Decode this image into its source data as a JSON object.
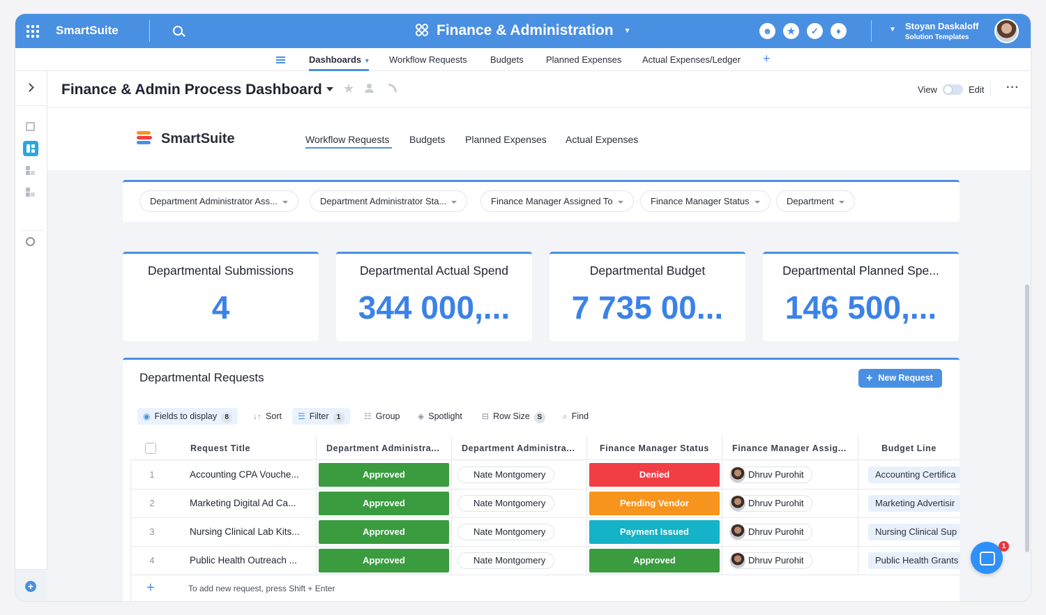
{
  "app": {
    "brand": "SmartSuite",
    "workspace_title": "Finance & Administration",
    "user_name": "Stoyan Daskaloff",
    "user_subtitle": "Solution Templates"
  },
  "subnav": {
    "items": [
      "Dashboards",
      "Workflow Requests",
      "Budgets",
      "Planned Expenses",
      "Actual Expenses/Ledger"
    ],
    "add": "+"
  },
  "page": {
    "title": "Finance & Admin Process Dashboard",
    "view_label": "View",
    "edit_label": "Edit",
    "more": "···"
  },
  "banner": {
    "logo_text": "SmartSuite",
    "nav": [
      "Workflow Requests",
      "Budgets",
      "Planned Expenses",
      "Actual Expenses"
    ]
  },
  "filters": [
    "Department Administrator Ass...",
    "Department Administrator Sta...",
    "Finance Manager Assigned To",
    "Finance Manager Status",
    "Department"
  ],
  "metrics": [
    {
      "title": "Departmental Submissions",
      "value": "4"
    },
    {
      "title": "Departmental Actual Spend",
      "value": "344 000,..."
    },
    {
      "title": "Departmental Budget",
      "value": "7 735 00..."
    },
    {
      "title": "Departmental Planned Spe...",
      "value": "146 500,..."
    }
  ],
  "requests": {
    "title": "Departmental Requests",
    "new_button": "New Request",
    "toolbar": {
      "fields": "Fields to display",
      "fields_count": "8",
      "sort": "Sort",
      "filter": "Filter",
      "filter_count": "1",
      "group": "Group",
      "spotlight": "Spotlight",
      "row_size": "Row Size",
      "row_size_value": "S",
      "find": "Find"
    },
    "columns": [
      "Request Title",
      "Department Administra...",
      "Department Administra...",
      "Finance Manager Status",
      "Finance Manager Assig...",
      "Budget Line"
    ],
    "rows": [
      {
        "n": "1",
        "title": "Accounting CPA Vouche...",
        "admin_status": "Approved",
        "admin": "Nate Montgomery",
        "fm_status": "Denied",
        "fm": "Dhruv Purohit",
        "budget": "Accounting Certifica"
      },
      {
        "n": "2",
        "title": "Marketing Digital Ad Ca...",
        "admin_status": "Approved",
        "admin": "Nate Montgomery",
        "fm_status": "Pending Vendor",
        "fm": "Dhruv Purohit",
        "budget": "Marketing Advertisir"
      },
      {
        "n": "3",
        "title": "Nursing Clinical Lab Kits...",
        "admin_status": "Approved",
        "admin": "Nate Montgomery",
        "fm_status": "Payment Issued",
        "fm": "Dhruv Purohit",
        "budget": "Nursing Clinical Sup"
      },
      {
        "n": "4",
        "title": "Public Health Outreach ...",
        "admin_status": "Approved",
        "admin": "Nate Montgomery",
        "fm_status": "Approved",
        "fm": "Dhruv Purohit",
        "budget": "Public Health Grants"
      }
    ],
    "add_hint": "To add new request, press Shift + Enter"
  },
  "status_colors": {
    "Approved": "#3a9c3f",
    "Denied": "#f23d45",
    "Pending Vendor": "#f7941d",
    "Payment Issued": "#14b3c7"
  },
  "chat_badge": "1",
  "colors": {
    "accent": "#4a90e2",
    "metric_value": "#3b82e8"
  }
}
